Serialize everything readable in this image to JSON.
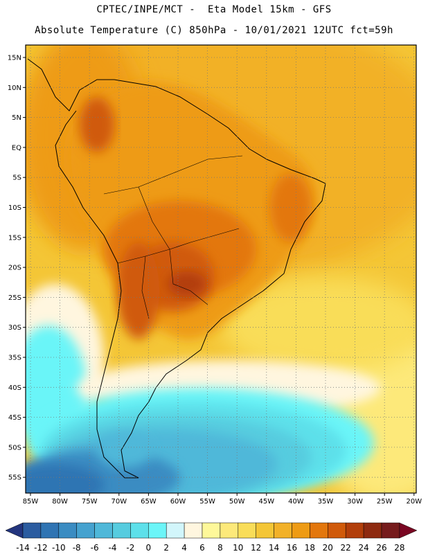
{
  "header": {
    "line1": "CPTEC/INPE/MCT -  Eta Model 15km - GFS",
    "line2": "Absolute Temperature (C) 850hPa - 10/01/2021 12UTC fct=59h"
  },
  "map": {
    "lat_labels": [
      "15N",
      "10N",
      "5N",
      "EQ",
      "5S",
      "10S",
      "15S",
      "20S",
      "25S",
      "30S",
      "35S",
      "40S",
      "45S",
      "50S",
      "55S"
    ],
    "lon_labels": [
      "85W",
      "80W",
      "75W",
      "70W",
      "65W",
      "60W",
      "55W",
      "50W",
      "45W",
      "40W",
      "35W",
      "30W",
      "25W",
      "20W"
    ],
    "grid": "dotted"
  },
  "colorbar": {
    "labels": [
      "-14",
      "-12",
      "-10",
      "-8",
      "-6",
      "-4",
      "-2",
      "0",
      "2",
      "4",
      "6",
      "8",
      "10",
      "12",
      "14",
      "16",
      "18",
      "20",
      "22",
      "24",
      "26",
      "28"
    ],
    "colors": [
      "#23357e",
      "#2b5ca0",
      "#2f74b3",
      "#3a8cc2",
      "#45a2cf",
      "#4fb8d9",
      "#56ccdf",
      "#5de0ea",
      "#6bf5f8",
      "#d2f6fb",
      "#fff6df",
      "#fef89a",
      "#fde97a",
      "#f9dd58",
      "#f4c636",
      "#f2b128",
      "#ee9b14",
      "#e3770d",
      "#d05a0a",
      "#b23e0a",
      "#8e2a10",
      "#761b1c",
      "#7a0622"
    ],
    "units": "C"
  }
}
